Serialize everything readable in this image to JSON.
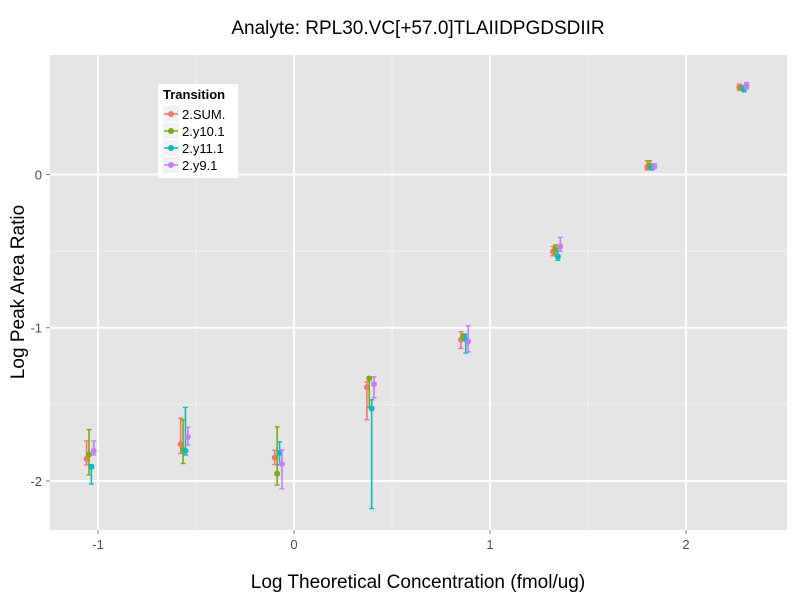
{
  "chart_data": {
    "type": "scatter",
    "title": "Analyte: RPL30.VC[+57.0]TLAIIDPGDSDIIR",
    "xlabel": "Log Theoretical Concentration (fmol/ug)",
    "ylabel": "Log Peak Area Ratio",
    "xlim": [
      -1.245,
      2.515
    ],
    "ylim": [
      -2.32,
      0.78
    ],
    "xticks": [
      -1,
      0,
      1,
      2
    ],
    "xtick_labels": [
      "-1",
      "0",
      "1",
      "2"
    ],
    "yticks": [
      -2,
      -1,
      0
    ],
    "ytick_labels": [
      "-2",
      "-1",
      "0"
    ],
    "grid": true,
    "legend": {
      "title": "Transition",
      "placement": "top-left"
    },
    "x": [
      -1.04,
      -0.56,
      -0.08,
      0.39,
      0.87,
      1.34,
      1.82,
      2.29
    ],
    "series": [
      {
        "name": "2.SUM.",
        "color": "#F8766D",
        "y": [
          -1.856,
          -1.76,
          -1.848,
          -1.388,
          -1.078,
          -0.503,
          0.05,
          0.57
        ],
        "ylow": [
          -1.895,
          -1.82,
          -1.893,
          -1.6,
          -1.135,
          -0.53,
          0.03,
          0.55
        ],
        "yhigh": [
          -1.739,
          -1.59,
          -1.8,
          -1.353,
          -1.026,
          -0.47,
          0.09,
          0.59
        ]
      },
      {
        "name": "2.y10.1",
        "color": "#7CAE00",
        "y": [
          -1.828,
          -1.797,
          -1.952,
          -1.331,
          -1.059,
          -0.49,
          0.06,
          0.565
        ],
        "ylow": [
          -1.96,
          -1.886,
          -2.026,
          -1.52,
          -1.08,
          -0.52,
          0.04,
          0.55
        ],
        "yhigh": [
          -1.665,
          -1.6,
          -1.647,
          -1.32,
          -1.04,
          -0.46,
          0.09,
          0.58
        ]
      },
      {
        "name": "2.y11.1",
        "color": "#00BFC4",
        "y": [
          -1.908,
          -1.804,
          -1.817,
          -1.527,
          -1.076,
          -0.536,
          0.045,
          0.56
        ],
        "ylow": [
          -2.02,
          -1.83,
          -1.895,
          -2.18,
          -1.165,
          -0.56,
          0.03,
          0.54
        ],
        "yhigh": [
          -1.895,
          -1.52,
          -1.745,
          -1.47,
          -1.044,
          -0.5,
          0.06,
          0.58
        ]
      },
      {
        "name": "2.y9.1",
        "color": "#C77CFF",
        "y": [
          -1.804,
          -1.712,
          -1.889,
          -1.368,
          -1.09,
          -0.47,
          0.055,
          0.58
        ],
        "ylow": [
          -1.83,
          -1.765,
          -2.05,
          -1.458,
          -1.157,
          -0.5,
          0.04,
          0.56
        ],
        "yhigh": [
          -1.739,
          -1.65,
          -1.797,
          -1.32,
          -0.987,
          -0.41,
          0.07,
          0.6
        ]
      }
    ]
  }
}
